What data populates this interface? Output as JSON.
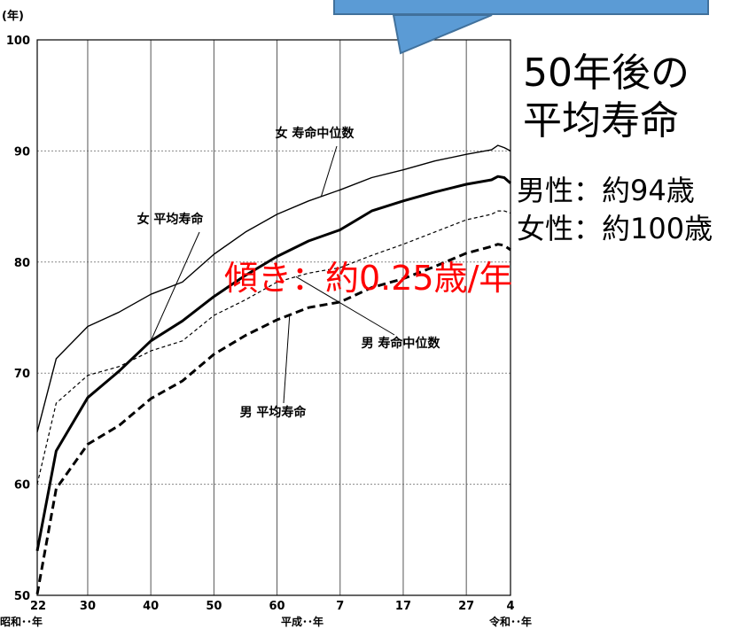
{
  "callout": {
    "title_line1": "50年後の",
    "title_line2": "平均寿命",
    "male": "男性：約94歳",
    "female": "女性：約100歳",
    "box_color": "#5b9bd5"
  },
  "slope_note": "傾き：約0.25歳/年",
  "chart_data": {
    "type": "line",
    "y_unit": "(年)",
    "ylim": [
      50,
      100
    ],
    "y_ticks": [
      50,
      60,
      70,
      80,
      90,
      100
    ],
    "x_ticks": [
      {
        "label": "22",
        "year": 1947
      },
      {
        "label": "30",
        "year": 1955
      },
      {
        "label": "40",
        "year": 1965
      },
      {
        "label": "50",
        "year": 1975
      },
      {
        "label": "60",
        "year": 1985
      },
      {
        "label": "7",
        "year": 1995
      },
      {
        "label": "17",
        "year": 2005
      },
      {
        "label": "27",
        "year": 2015
      },
      {
        "label": "4",
        "year": 2022
      }
    ],
    "x_eras": [
      {
        "label": "昭和･･年",
        "year": 1947
      },
      {
        "label": "平成･･年",
        "year": 1989
      },
      {
        "label": "令和･･年",
        "year": 2022
      }
    ],
    "xlim": [
      1947,
      2022
    ],
    "grid": true,
    "series": [
      {
        "name": "女 寿命中位数",
        "style": "thin-solid",
        "x": [
          1947,
          1950,
          1955,
          1960,
          1965,
          1970,
          1975,
          1980,
          1985,
          1990,
          1995,
          2000,
          2005,
          2010,
          2015,
          2019,
          2020,
          2021,
          2022
        ],
        "y": [
          64.7,
          71.3,
          74.2,
          75.5,
          77.1,
          78.2,
          80.7,
          82.7,
          84.3,
          85.5,
          86.5,
          87.6,
          88.3,
          89.1,
          89.7,
          90.1,
          90.5,
          90.3,
          90.0
        ]
      },
      {
        "name": "女 平均寿命",
        "style": "thick-solid",
        "x": [
          1947,
          1950,
          1955,
          1960,
          1965,
          1970,
          1975,
          1980,
          1985,
          1990,
          1995,
          2000,
          2005,
          2010,
          2015,
          2019,
          2020,
          2021,
          2022
        ],
        "y": [
          54.0,
          63.0,
          67.8,
          70.2,
          72.9,
          74.7,
          76.9,
          78.8,
          80.5,
          81.9,
          82.9,
          84.6,
          85.5,
          86.3,
          87.0,
          87.4,
          87.7,
          87.6,
          87.1
        ]
      },
      {
        "name": "男 寿命中位数",
        "style": "thin-dashed",
        "x": [
          1947,
          1950,
          1955,
          1960,
          1965,
          1970,
          1975,
          1980,
          1985,
          1990,
          1995,
          2000,
          2005,
          2010,
          2015,
          2019,
          2020,
          2021,
          2022
        ],
        "y": [
          60.0,
          67.3,
          69.8,
          70.6,
          72.0,
          72.9,
          75.2,
          76.6,
          78.2,
          79.0,
          79.5,
          80.6,
          81.6,
          82.7,
          83.8,
          84.3,
          84.6,
          84.6,
          84.4
        ]
      },
      {
        "name": "男 平均寿命",
        "style": "thick-dashed",
        "x": [
          1947,
          1950,
          1955,
          1960,
          1965,
          1970,
          1975,
          1980,
          1985,
          1990,
          1995,
          2000,
          2005,
          2010,
          2015,
          2019,
          2020,
          2021,
          2022
        ],
        "y": [
          50.1,
          59.6,
          63.6,
          65.3,
          67.7,
          69.3,
          71.7,
          73.4,
          74.8,
          75.9,
          76.4,
          77.7,
          78.5,
          79.6,
          80.8,
          81.4,
          81.6,
          81.5,
          81.1
        ]
      }
    ],
    "annotations": [
      {
        "text": "女  寿命中位数",
        "series": 0,
        "point_year": 1992
      },
      {
        "text": "女 平均寿命",
        "series": 1,
        "point_year": 1965
      },
      {
        "text": "男  寿命中位数",
        "series": 2,
        "point_year": 1988
      },
      {
        "text": "男  平均寿命",
        "series": 3,
        "point_year": 1987
      }
    ]
  }
}
